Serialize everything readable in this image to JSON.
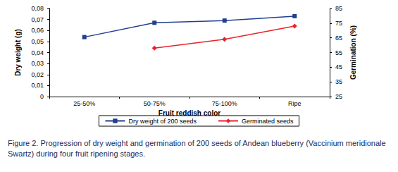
{
  "chart_data": {
    "type": "line",
    "caption": "Figure 2. Progression of dry weight and germination of 200 seeds of Andean blueberry (Vaccinium meridionale Swartz) during four fruit ripening stages.",
    "x_label": "Fruit reddish color",
    "y_label": "Dry weight (g)",
    "y2_label": "Germination (%)",
    "categories": [
      "25-50%",
      "50-75%",
      "75-100%",
      "Ripe"
    ],
    "series": [
      {
        "name": "Dry weight of 200 seeds",
        "color": "#1f3f8f",
        "marker": "square",
        "values": [
          0.054,
          0.067,
          0.069,
          0.073
        ]
      },
      {
        "name": "Germinated seeds",
        "color": "#e8232a",
        "marker": "diamond",
        "axis": "y2",
        "values": [
          null,
          58,
          64,
          73
        ]
      }
    ],
    "ylim": [
      0,
      0.08
    ],
    "yticks": [
      0,
      {
        "value": 0.01,
        "label": "0,01"
      },
      {
        "value": 0.02,
        "label": "0,02"
      },
      {
        "value": 0.03,
        "label": "0,03"
      },
      {
        "value": 0.04,
        "label": "0,04"
      },
      {
        "value": 0.05,
        "label": "0,05"
      },
      {
        "value": 0.06,
        "label": "0,06"
      },
      {
        "value": 0.07,
        "label": "0,07"
      },
      {
        "value": 0.08,
        "label": "0,08"
      }
    ],
    "y2lim": [
      25,
      85
    ],
    "y2ticks": [
      25,
      35,
      45,
      55,
      65,
      75,
      85
    ],
    "grid": false,
    "legend": "bottom"
  }
}
